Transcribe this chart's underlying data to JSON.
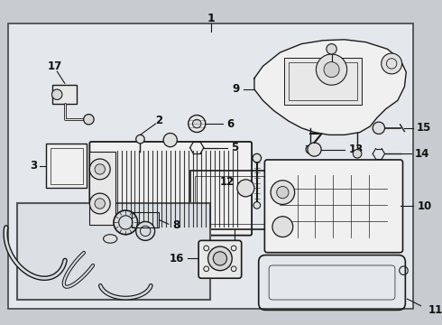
{
  "bg_color": "#c8ccd0",
  "border_color": "#444444",
  "diagram_bg": "#e4e8ec",
  "line_color": "#1a1a1a",
  "text_color": "#111111",
  "figsize": [
    4.9,
    3.6
  ],
  "dpi": 100
}
